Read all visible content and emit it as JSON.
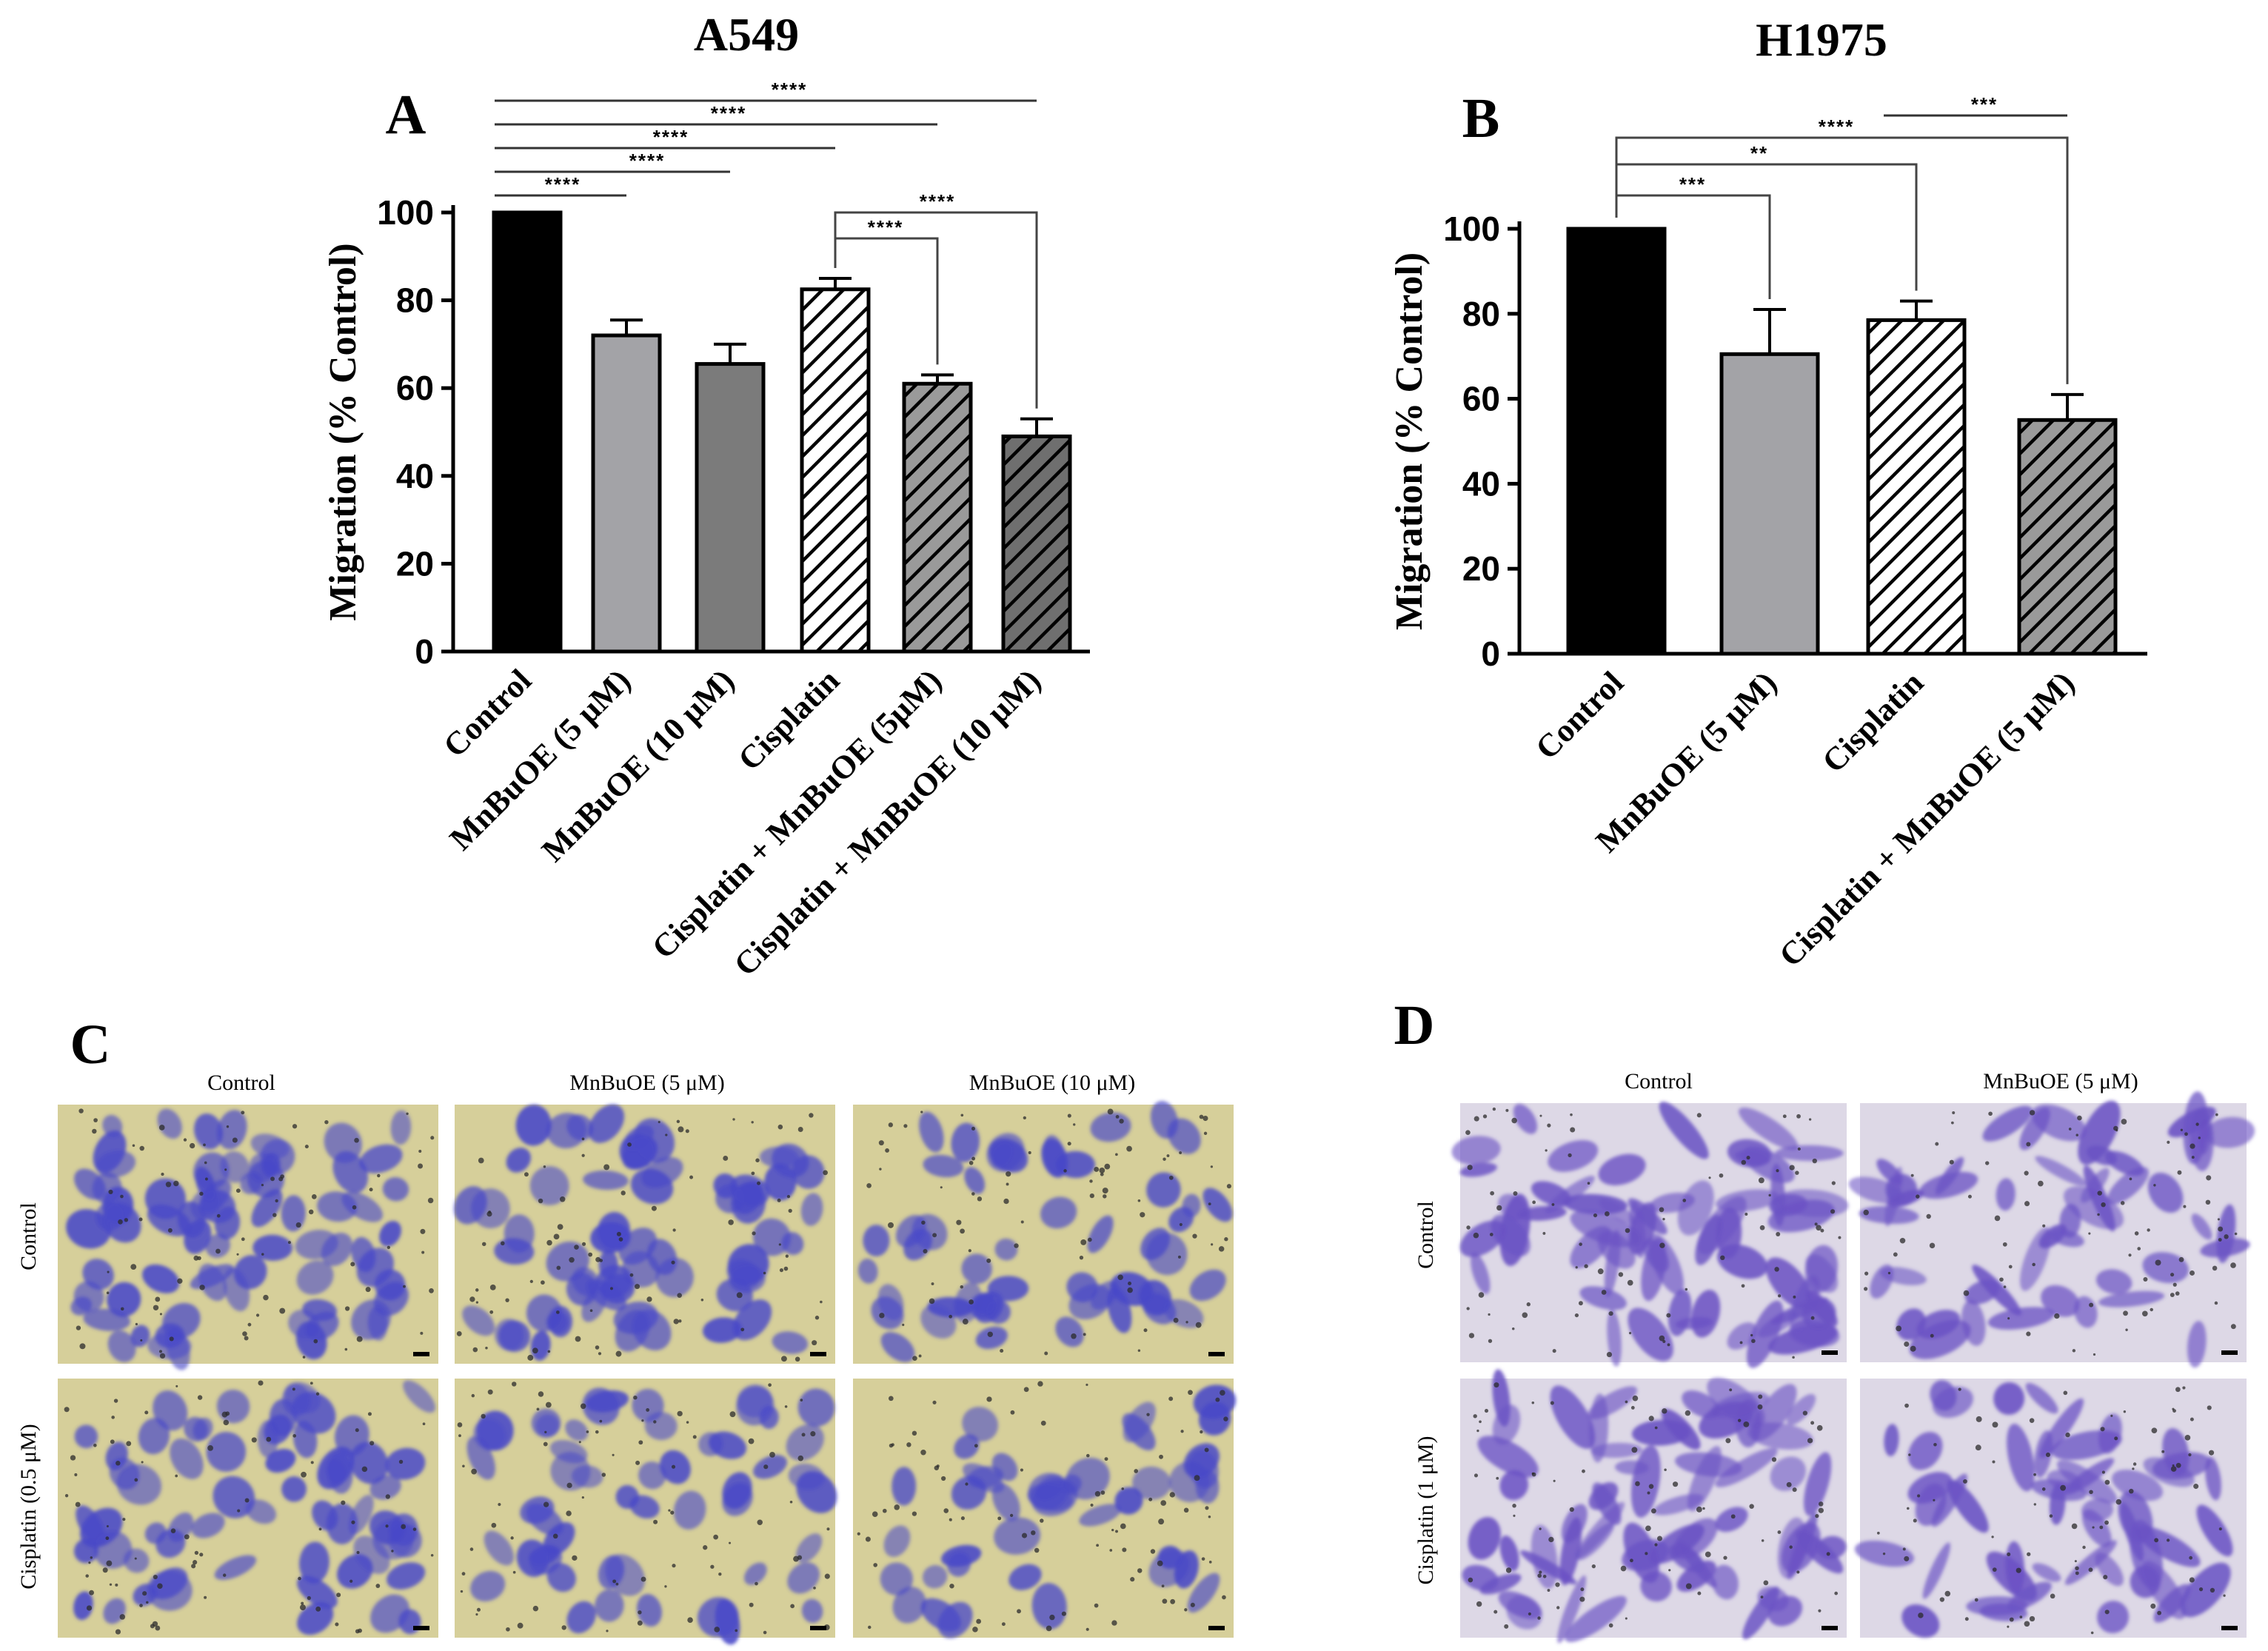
{
  "chart_data": [
    {
      "panel_letter": "A",
      "cell_line": "A549",
      "type": "bar",
      "ylabel": "Migration (% Control)",
      "ylim": [
        0,
        100
      ],
      "yticks": [
        0,
        20,
        40,
        60,
        80,
        100
      ],
      "categories": [
        "Control",
        "MnBuOE (5 µM)",
        "MnBuOE (10 µM)",
        "Cisplatin",
        "Cisplatin + MnBuOE (5µM)",
        "Cisplatin + MnBuOE (10 µM)"
      ],
      "values": [
        100,
        72,
        65.5,
        82.5,
        61,
        49
      ],
      "errors": [
        0,
        3.5,
        4.5,
        2.5,
        2,
        4
      ],
      "fills": [
        "solid-black",
        "solid-light-gray",
        "solid-gray",
        "hatch-white",
        "hatch-gray",
        "hatch-dark-gray"
      ],
      "comparisons": [
        {
          "from": 0,
          "to": 1,
          "label": "****"
        },
        {
          "from": 0,
          "to": 2,
          "label": "****"
        },
        {
          "from": 0,
          "to": 3,
          "label": "****"
        },
        {
          "from": 0,
          "to": 4,
          "label": "****"
        },
        {
          "from": 0,
          "to": 5,
          "label": "****"
        },
        {
          "from": 3,
          "to": 4,
          "label": "****"
        },
        {
          "from": 3,
          "to": 5,
          "label": "****"
        }
      ]
    },
    {
      "panel_letter": "B",
      "cell_line": "H1975",
      "type": "bar",
      "ylabel": "Migration (% Control)",
      "ylim": [
        0,
        100
      ],
      "yticks": [
        0,
        20,
        40,
        60,
        80,
        100
      ],
      "categories": [
        "Control",
        "MnBuOE (5 µM)",
        "Cisplatin",
        "Cisplatin + MnBuOE (5 µM)"
      ],
      "values": [
        100,
        70.5,
        78.5,
        55
      ],
      "errors": [
        0,
        10.5,
        4.5,
        6
      ],
      "fills": [
        "solid-black",
        "solid-light-gray",
        "hatch-white",
        "hatch-gray"
      ],
      "comparisons": [
        {
          "from": 0,
          "to": 1,
          "label": "***"
        },
        {
          "from": 0,
          "to": 2,
          "label": "**"
        },
        {
          "from": 0,
          "to": 3,
          "label": "****"
        },
        {
          "from": 2,
          "to": 3,
          "label": "***"
        }
      ]
    }
  ],
  "panel_c": {
    "letter": "C",
    "col_headers": [
      "Control",
      "MnBuOE (5 μM)",
      "MnBuOE (10 μM)"
    ],
    "row_headers": [
      "Control",
      "Cisplatin (0.5 μM)"
    ]
  },
  "panel_d": {
    "letter": "D",
    "col_headers": [
      "Control",
      "MnBuOE (5 μM)"
    ],
    "row_headers": [
      "Control",
      "Cisplatin (1 μM)"
    ]
  },
  "colors": {
    "black": "#000000",
    "light_gray": "#a3a3a7",
    "mid_gray": "#7b7b7b",
    "hatch_gray_bg": "#9a9a9a",
    "hatch_dark_bg": "#6f6f6f",
    "micro_bg": "#d6cf9a",
    "micro_bg_d": "#ddd8e6",
    "cell_blue": "#4848c8",
    "cell_violet": "#6a52c4"
  }
}
